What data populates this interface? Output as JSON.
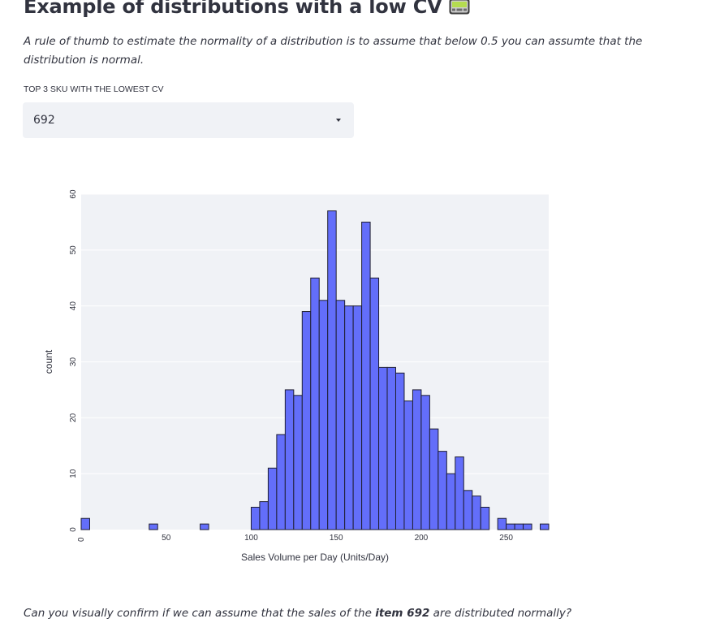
{
  "header": {
    "title": "Example of distributions with a low CV",
    "title_icon": "pager-icon"
  },
  "intro": {
    "text": "A rule of thumb to estimate the normality of a distribution is to assume that below 0.5 you can assumte that the distribution is normal."
  },
  "selector": {
    "label": "TOP 3 SKU WITH THE LOWEST CV",
    "value": "692"
  },
  "chart_data": {
    "type": "bar",
    "subtype": "histogram",
    "xlabel": "Sales Volume per Day (Units/Day)",
    "ylabel": "count",
    "xlim": [
      0,
      275
    ],
    "ylim": [
      0,
      60
    ],
    "xticks": [
      0,
      50,
      100,
      150,
      200,
      250
    ],
    "yticks": [
      0,
      10,
      20,
      30,
      40,
      50,
      60
    ],
    "bin_width": 5,
    "bar_color": "#636efa",
    "bar_outline": "#1f1f33",
    "plot_bg": "#f0f2f6",
    "grid": true,
    "bins": [
      {
        "x0": 0,
        "count": 2
      },
      {
        "x0": 40,
        "count": 1
      },
      {
        "x0": 70,
        "count": 1
      },
      {
        "x0": 100,
        "count": 4
      },
      {
        "x0": 105,
        "count": 5
      },
      {
        "x0": 110,
        "count": 11
      },
      {
        "x0": 115,
        "count": 17
      },
      {
        "x0": 120,
        "count": 25
      },
      {
        "x0": 125,
        "count": 24
      },
      {
        "x0": 130,
        "count": 39
      },
      {
        "x0": 135,
        "count": 45
      },
      {
        "x0": 140,
        "count": 41
      },
      {
        "x0": 145,
        "count": 57
      },
      {
        "x0": 150,
        "count": 41
      },
      {
        "x0": 155,
        "count": 40
      },
      {
        "x0": 160,
        "count": 40
      },
      {
        "x0": 165,
        "count": 55
      },
      {
        "x0": 170,
        "count": 45
      },
      {
        "x0": 175,
        "count": 29
      },
      {
        "x0": 180,
        "count": 29
      },
      {
        "x0": 185,
        "count": 28
      },
      {
        "x0": 190,
        "count": 23
      },
      {
        "x0": 195,
        "count": 25
      },
      {
        "x0": 200,
        "count": 24
      },
      {
        "x0": 205,
        "count": 18
      },
      {
        "x0": 210,
        "count": 14
      },
      {
        "x0": 215,
        "count": 10
      },
      {
        "x0": 220,
        "count": 13
      },
      {
        "x0": 225,
        "count": 7
      },
      {
        "x0": 230,
        "count": 6
      },
      {
        "x0": 235,
        "count": 4
      },
      {
        "x0": 245,
        "count": 2
      },
      {
        "x0": 250,
        "count": 1
      },
      {
        "x0": 255,
        "count": 1
      },
      {
        "x0": 260,
        "count": 1
      },
      {
        "x0": 270,
        "count": 1
      }
    ]
  },
  "outro": {
    "before": "Can you visually confirm if we can assume that the sales of the ",
    "bold": "item 692",
    "after": " are distributed normally?"
  }
}
